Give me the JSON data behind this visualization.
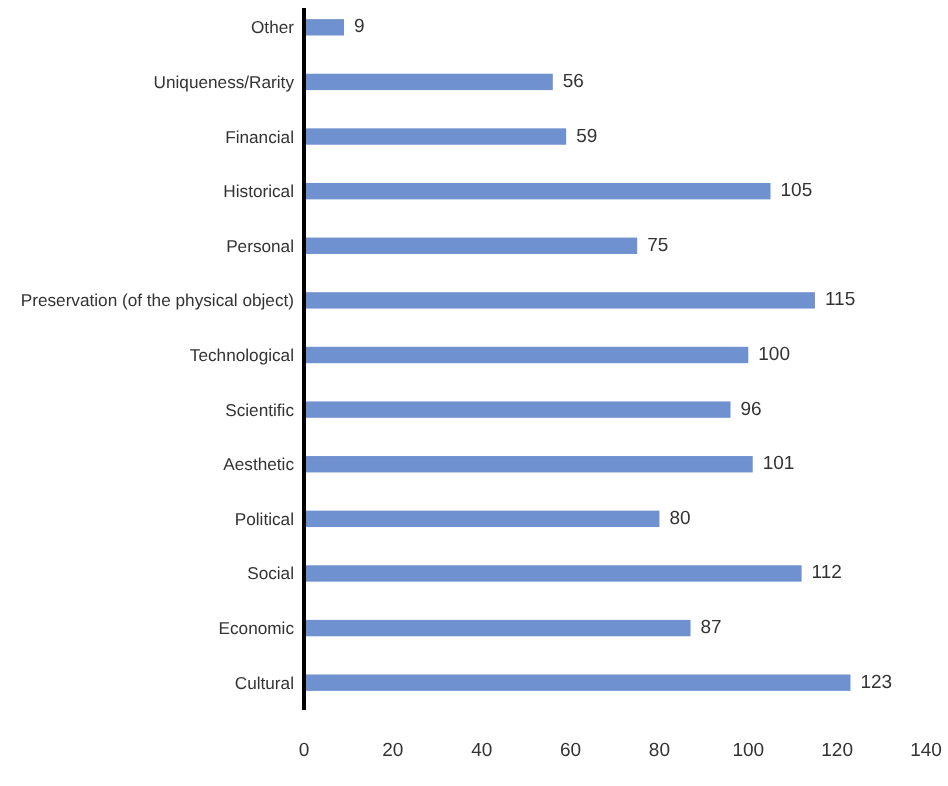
{
  "chart_data": {
    "type": "bar",
    "orientation": "horizontal",
    "categories": [
      "Other",
      "Uniqueness/Rarity",
      "Financial",
      "Historical",
      "Personal",
      "Preservation (of the physical object)",
      "Technological",
      "Scientific",
      "Aesthetic",
      "Political",
      "Social",
      "Economic",
      "Cultural"
    ],
    "values": [
      9,
      56,
      59,
      105,
      75,
      115,
      100,
      96,
      101,
      80,
      112,
      87,
      123
    ],
    "color": "#7091cf",
    "xlim": [
      0,
      140
    ],
    "xticks": [
      0,
      20,
      40,
      60,
      80,
      100,
      120,
      140
    ],
    "data_labels": true,
    "grid": false
  }
}
